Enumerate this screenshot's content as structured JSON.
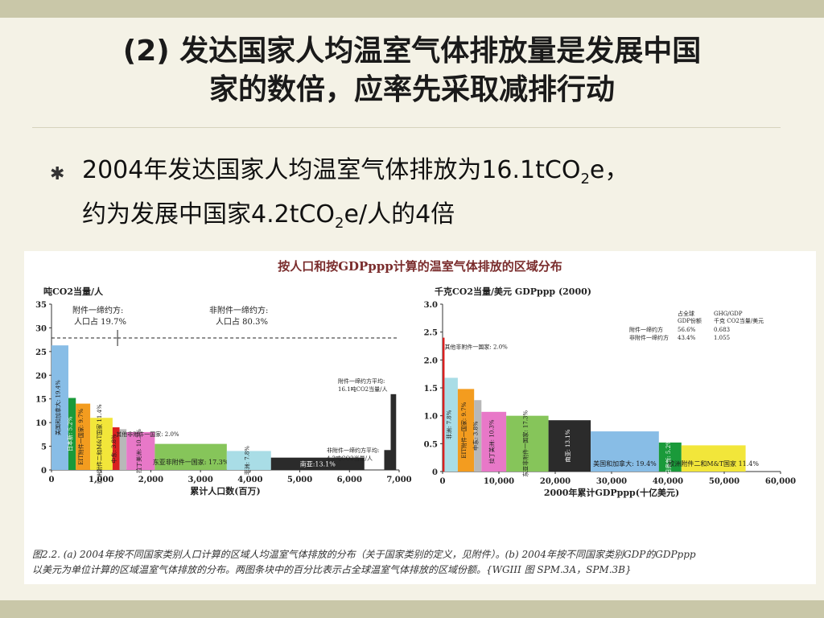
{
  "slide": {
    "title_line1": "(2) 发达国家人均温室气体排放量是发展中国",
    "title_line2": "家的数倍，应率先采取减排行动",
    "bullet_icon": "asterisk-bullet-icon",
    "bullet_line1_a": "2004年发达国家人均温室气体排放为16.1tCO",
    "bullet_line1_sub": "2",
    "bullet_line1_b": "e，",
    "bullet_line2_a": "约为发展中国家4.2tCO",
    "bullet_line2_sub": "2",
    "bullet_line2_b": "e/人的4倍"
  },
  "figure": {
    "title": "按人口和按GDPppp计算的温室气体排放的区域分布",
    "caption_line1": "图2.2. (a) 2004年按不同国家类别人口计算的区域人均温室气体排放的分布（关于国家类别的定义，见附件）。(b) 2004年按不同国家类别GDP的GDPppp",
    "caption_line2": "以美元为单位计算的区域温室气体排放的分布。两图条块中的百分比表示占全球温室气体排放的区域份额。{WGIII 图 SPM.3A，SPM.3B}"
  },
  "chart_data": [
    {
      "type": "bar",
      "ylabel": "吨CO2当量/人",
      "xlabel": "累计人口数(百万)",
      "xlim": [
        0,
        7000
      ],
      "ylim": [
        0,
        35
      ],
      "xticks": [
        "0",
        "1,000",
        "2,000",
        "3,000",
        "4,000",
        "5,000",
        "6,000",
        "7,000"
      ],
      "yticks": [
        "0",
        "5",
        "10",
        "15",
        "20",
        "25",
        "30",
        "35"
      ],
      "annex1_label": "附件一缔约方:",
      "annex1_pop": "人口占 19.7%",
      "nonannex1_label": "非附件一缔约方:",
      "nonannex1_pop": "人口占 80.3%",
      "annex1_avg": [
        "附件一缔约方平均:",
        "16.1吨CO2当量/人"
      ],
      "nonannex1_avg": [
        "非附件一缔约方平均:",
        "4.2吨CO2当量/人"
      ],
      "other_note": "其他非附件一国家: 2.0%",
      "series": [
        {
          "label": "美国和加拿大: 19.4%",
          "x0": 0,
          "x1": 340,
          "value": 26.3,
          "color": "#88bde6"
        },
        {
          "label": "日本新: 5.2%",
          "x0": 340,
          "x1": 490,
          "value": 15.2,
          "color": "#1a9a3a"
        },
        {
          "label": "EIT附件一国家: 9.7%",
          "x0": 490,
          "x1": 780,
          "value": 14.0,
          "color": "#f39c1f"
        },
        {
          "label": "欧洲附件二和M&T国家 11.4%",
          "x0": 780,
          "x1": 1230,
          "value": 11.0,
          "color": "#f2e63a"
        },
        {
          "label": "中东: 3.8%",
          "x0": 1230,
          "x1": 1370,
          "value": 9.0,
          "color": "#d92020"
        },
        {
          "label": "",
          "x0": 1370,
          "x1": 1510,
          "value": 8.6,
          "color": "#b8b8b8"
        },
        {
          "label": "拉丁美洲: 10.3%",
          "x0": 1510,
          "x1": 2080,
          "value": 8.0,
          "color": "#e878c8"
        },
        {
          "label": "东亚非附件一国家: 17.3%",
          "x0": 2080,
          "x1": 3530,
          "value": 5.5,
          "color": "#86c55a"
        },
        {
          "label": "非洲: 7.8%",
          "x0": 3530,
          "x1": 4420,
          "value": 4.0,
          "color": "#a9dde6"
        },
        {
          "label": "南亚:13.1%",
          "x0": 4420,
          "x1": 6300,
          "value": 2.6,
          "color": "#2b2b2b"
        },
        {
          "label": "",
          "x0": 6700,
          "x1": 6830,
          "value": 4.2,
          "color": "#2b2b2b"
        },
        {
          "label": "",
          "x0": 6830,
          "x1": 6940,
          "value": 16.0,
          "color": "#2b2b2b"
        }
      ]
    },
    {
      "type": "bar",
      "ylabel": "千克CO2当量/美元 GDPppp (2000)",
      "xlabel": "2000年累计GDPppp(十亿美元)",
      "xlim": [
        0,
        60000
      ],
      "ylim": [
        0,
        3.0
      ],
      "xticks": [
        "0",
        "10,000",
        "20,000",
        "30,000",
        "40,000",
        "50,000",
        "60,000"
      ],
      "yticks": [
        "0",
        "0.5",
        "1.0",
        "1.5",
        "2.0",
        "2.5",
        "3.0"
      ],
      "share_header": [
        "占全球",
        "GDP份额",
        "GHG/GDP",
        "千克 CO2当量/美元"
      ],
      "share_rows": [
        [
          "附件一缔约方",
          "56.6%",
          "0.683"
        ],
        [
          "非附件一缔约方",
          "43.4%",
          "1.055"
        ]
      ],
      "other_note": "其他非附件一国家: 2.0%",
      "series": [
        {
          "label": "",
          "x0": 0,
          "x1": 350,
          "value": 2.4,
          "color": "#d92020"
        },
        {
          "label": "非洲: 7.8%",
          "x0": 350,
          "x1": 2700,
          "value": 1.68,
          "color": "#a9dde6"
        },
        {
          "label": "EIT附件一国家: 9.7%",
          "x0": 2700,
          "x1": 5600,
          "value": 1.48,
          "color": "#f39c1f"
        },
        {
          "label": "中东: 3.8%",
          "x0": 5600,
          "x1": 6900,
          "value": 1.28,
          "color": "#b8b8b8"
        },
        {
          "label": "拉丁美洲: 10.3%",
          "x0": 6900,
          "x1": 11300,
          "value": 1.07,
          "color": "#e878c8"
        },
        {
          "label": "东亚非附件一国家: 17.3%",
          "x0": 11300,
          "x1": 18800,
          "value": 1.0,
          "color": "#86c55a"
        },
        {
          "label": "南亚: 13.1%",
          "x0": 18800,
          "x1": 26300,
          "value": 0.92,
          "color": "#2b2b2b"
        },
        {
          "label": "美国和加拿大: 19.4%",
          "x0": 26300,
          "x1": 38400,
          "value": 0.72,
          "color": "#88bde6"
        },
        {
          "label": "日奥新: 5.2%",
          "x0": 38400,
          "x1": 42400,
          "value": 0.52,
          "color": "#1a9a3a"
        },
        {
          "label": "欧洲附件二和M&T国家 11.4%",
          "x0": 42400,
          "x1": 53800,
          "value": 0.47,
          "color": "#f2e63a"
        }
      ]
    }
  ]
}
